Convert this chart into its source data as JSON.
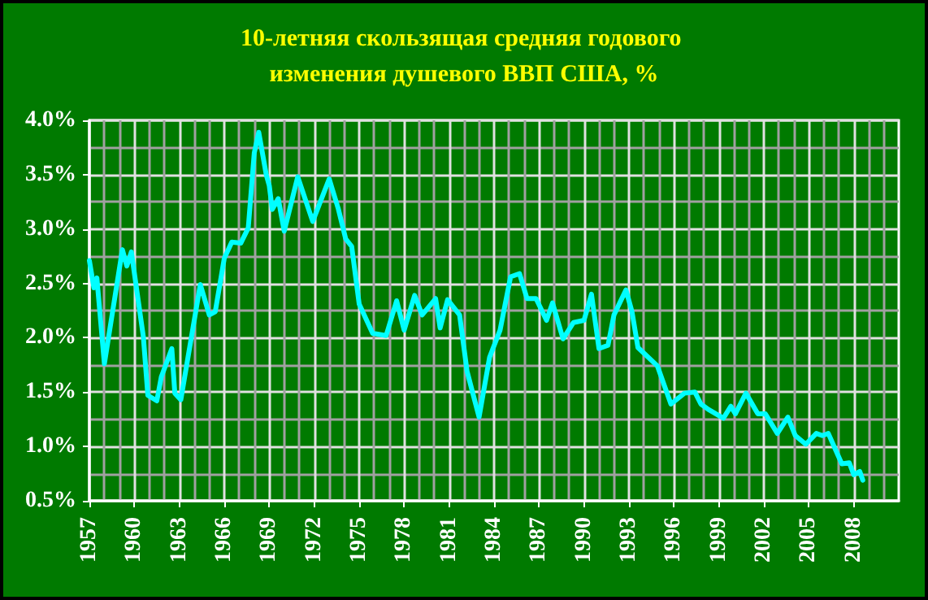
{
  "chart_data": {
    "type": "line",
    "title": "10-летняя скользящая средняя годового изменения душевого ВВП США, %",
    "x": [
      1957.0,
      1957.3,
      1957.5,
      1958.0,
      1959.2,
      1959.5,
      1959.8,
      1960.6,
      1960.9,
      1961.5,
      1961.8,
      1962.5,
      1962.7,
      1963.1,
      1964.4,
      1965.0,
      1965.4,
      1966.0,
      1966.5,
      1967.1,
      1967.6,
      1968.0,
      1968.3,
      1968.8,
      1969.0,
      1969.2,
      1969.6,
      1970.0,
      1970.9,
      1971.9,
      1973.0,
      1973.6,
      1974.1,
      1974.5,
      1975.0,
      1975.9,
      1976.8,
      1977.5,
      1978.0,
      1978.7,
      1979.2,
      1980.1,
      1980.4,
      1980.9,
      1981.7,
      1982.2,
      1983.0,
      1983.7,
      1984.4,
      1985.1,
      1985.7,
      1986.2,
      1986.8,
      1987.5,
      1987.9,
      1988.6,
      1989.3,
      1990.0,
      1990.5,
      1991.0,
      1991.6,
      1992.0,
      1992.8,
      1993.2,
      1993.6,
      1994.9,
      1995.8,
      1996.7,
      1997.4,
      1997.8,
      1998.3,
      1999.3,
      1999.8,
      2000.1,
      2000.8,
      2001.6,
      2002.1,
      2002.9,
      2003.6,
      2004.1,
      2004.8,
      2005.5,
      2005.9,
      2006.3,
      2007.2,
      2007.7,
      2008.0,
      2008.4,
      2008.6
    ],
    "series": [
      {
        "color": "#00ffff",
        "values": [
          2.71,
          2.46,
          2.55,
          1.76,
          2.81,
          2.66,
          2.79,
          2.01,
          1.47,
          1.42,
          1.64,
          1.9,
          1.49,
          1.43,
          2.49,
          2.21,
          2.24,
          2.73,
          2.88,
          2.87,
          3.01,
          3.7,
          3.89,
          3.5,
          3.4,
          3.18,
          3.28,
          2.98,
          3.48,
          3.07,
          3.46,
          3.19,
          2.91,
          2.84,
          2.31,
          2.04,
          2.02,
          2.34,
          2.07,
          2.39,
          2.21,
          2.36,
          2.09,
          2.35,
          2.21,
          1.69,
          1.27,
          1.82,
          2.07,
          2.56,
          2.59,
          2.36,
          2.36,
          2.16,
          2.32,
          1.99,
          2.14,
          2.16,
          2.4,
          1.9,
          1.93,
          2.21,
          2.44,
          2.24,
          1.91,
          1.74,
          1.39,
          1.49,
          1.5,
          1.39,
          1.34,
          1.26,
          1.37,
          1.3,
          1.49,
          1.3,
          1.3,
          1.12,
          1.27,
          1.1,
          1.02,
          1.12,
          1.1,
          1.12,
          0.84,
          0.85,
          0.74,
          0.77,
          0.69
        ]
      }
    ],
    "xlim": [
      1957,
      2011
    ],
    "xticks": [
      1957,
      {
        "value": 1958,
        "label": null
      },
      {
        "value": 1959,
        "label": null
      },
      1960,
      {
        "value": 1961,
        "label": null
      },
      {
        "value": 1962,
        "label": null
      },
      1963,
      {
        "value": 1964,
        "label": null
      },
      {
        "value": 1965,
        "label": null
      },
      1966,
      {
        "value": 1967,
        "label": null
      },
      {
        "value": 1968,
        "label": null
      },
      1969,
      {
        "value": 1970,
        "label": null
      },
      {
        "value": 1971,
        "label": null
      },
      1972,
      {
        "value": 1973,
        "label": null
      },
      {
        "value": 1974,
        "label": null
      },
      1975,
      {
        "value": 1976,
        "label": null
      },
      {
        "value": 1977,
        "label": null
      },
      1978,
      {
        "value": 1979,
        "label": null
      },
      {
        "value": 1980,
        "label": null
      },
      1981,
      {
        "value": 1982,
        "label": null
      },
      {
        "value": 1983,
        "label": null
      },
      1984,
      {
        "value": 1985,
        "label": null
      },
      {
        "value": 1986,
        "label": null
      },
      1987,
      {
        "value": 1988,
        "label": null
      },
      {
        "value": 1989,
        "label": null
      },
      1990,
      {
        "value": 1991,
        "label": null
      },
      {
        "value": 1992,
        "label": null
      },
      1993,
      {
        "value": 1994,
        "label": null
      },
      {
        "value": 1995,
        "label": null
      },
      1996,
      {
        "value": 1997,
        "label": null
      },
      {
        "value": 1998,
        "label": null
      },
      1999,
      {
        "value": 2000,
        "label": null
      },
      {
        "value": 2001,
        "label": null
      },
      2002,
      {
        "value": 2003,
        "label": null
      },
      {
        "value": 2004,
        "label": null
      },
      2005,
      {
        "value": 2006,
        "label": null
      },
      {
        "value": 2007,
        "label": null
      },
      2008,
      {
        "value": 2009,
        "label": null
      },
      {
        "value": 2010,
        "label": null
      }
    ],
    "ylim": [
      0.5,
      4.0
    ],
    "yticks": [
      {
        "value": 0.5,
        "label": "0.5%"
      },
      {
        "value": 0.75,
        "label": null
      },
      {
        "value": 1.0,
        "label": "1.0%"
      },
      {
        "value": 1.25,
        "label": null
      },
      {
        "value": 1.5,
        "label": "1.5%"
      },
      {
        "value": 1.75,
        "label": null
      },
      {
        "value": 2.0,
        "label": "2.0%"
      },
      {
        "value": 2.25,
        "label": null
      },
      {
        "value": 2.5,
        "label": "2.5%"
      },
      {
        "value": 2.75,
        "label": null
      },
      {
        "value": 3.0,
        "label": "3.0%"
      },
      {
        "value": 3.25,
        "label": null
      },
      {
        "value": 3.5,
        "label": "3.5%"
      },
      {
        "value": 3.75,
        "label": null
      },
      {
        "value": 4.0,
        "label": "4.0%"
      }
    ],
    "grid": true,
    "marker": "none",
    "line_style": "solid"
  }
}
